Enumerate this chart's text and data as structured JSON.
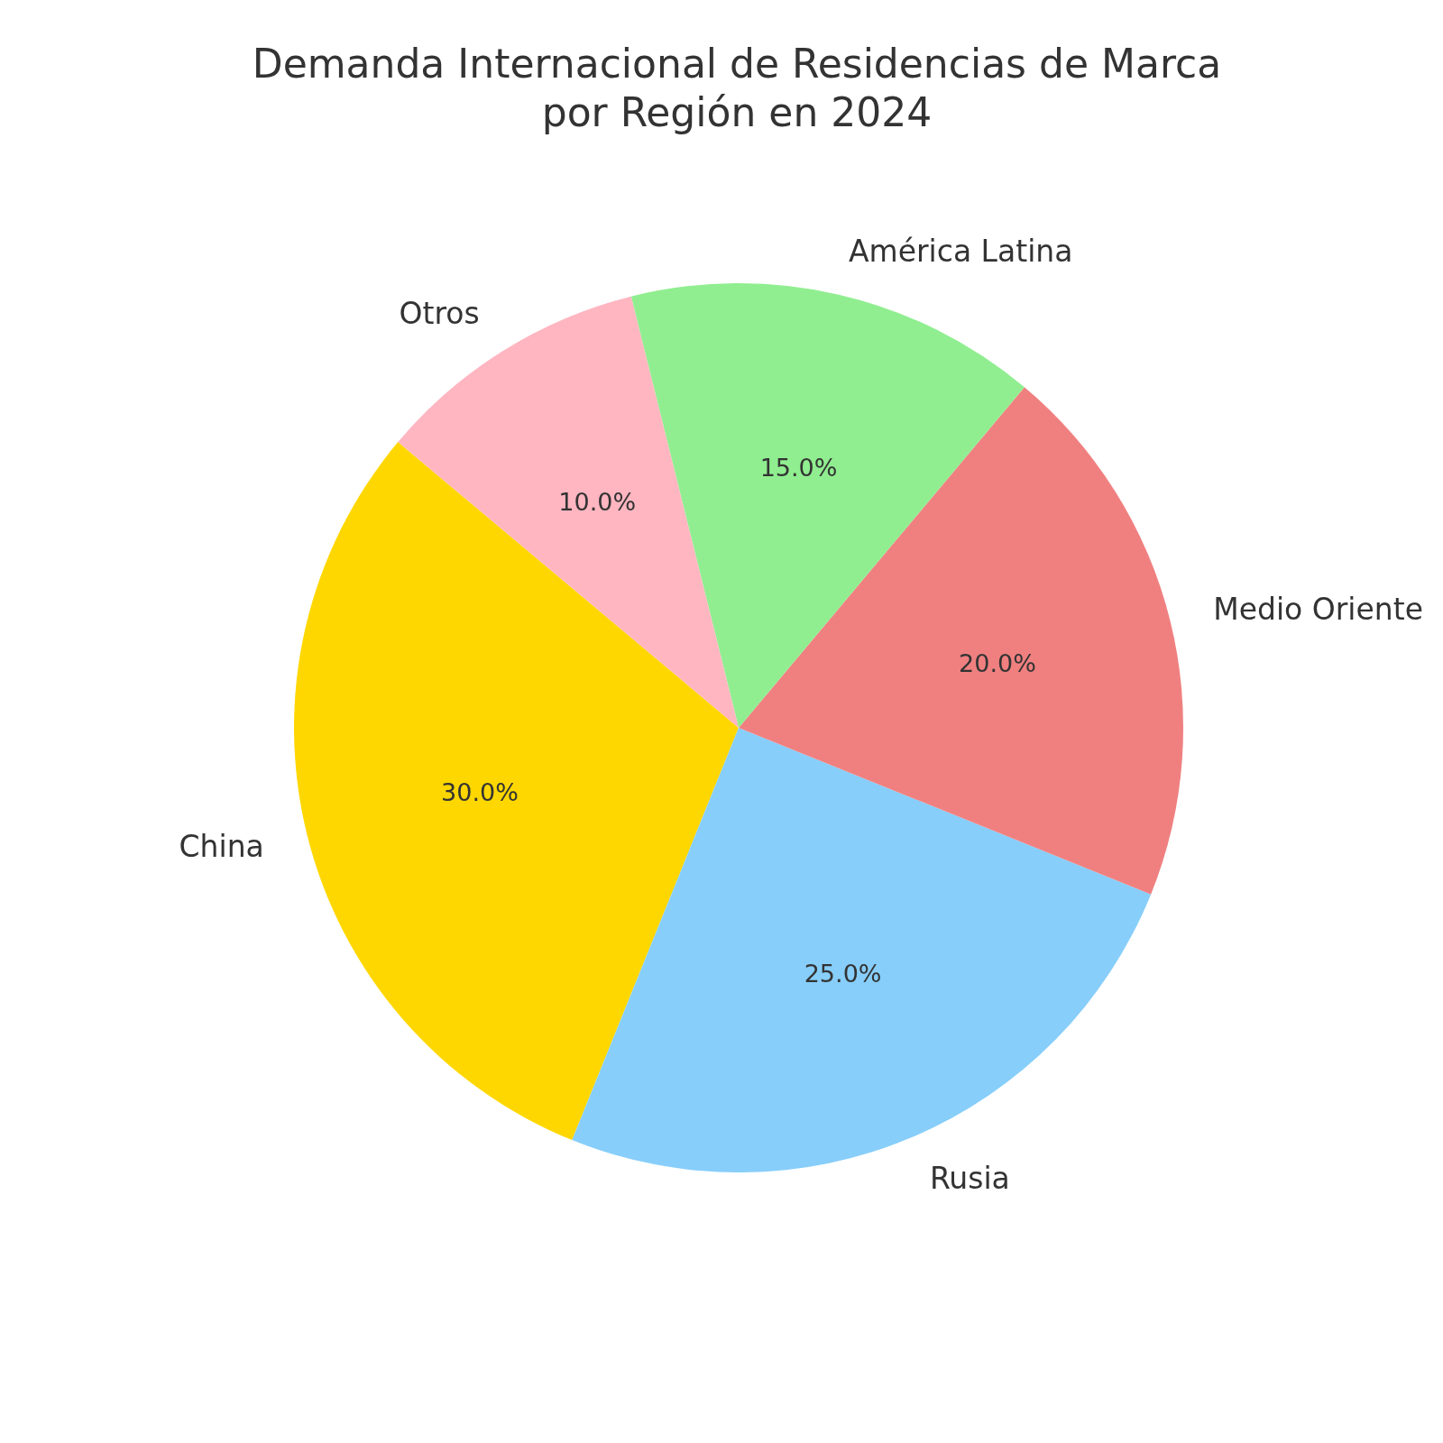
{
  "chart_data": {
    "type": "pie",
    "title": "Demanda Internacional de Residencias de Marca\npor Región en 2024",
    "categories": [
      "China",
      "Rusia",
      "Medio Oriente",
      "América Latina",
      "Otros"
    ],
    "values": [
      30,
      25,
      20,
      15,
      10
    ],
    "colors": [
      "#ffd700",
      "#87cefa",
      "#f08080",
      "#90ee90",
      "#ffb6c1"
    ],
    "value_labels": [
      "30.0%",
      "25.0%",
      "20.0%",
      "15.0%",
      "10.0%"
    ],
    "legend": false
  }
}
